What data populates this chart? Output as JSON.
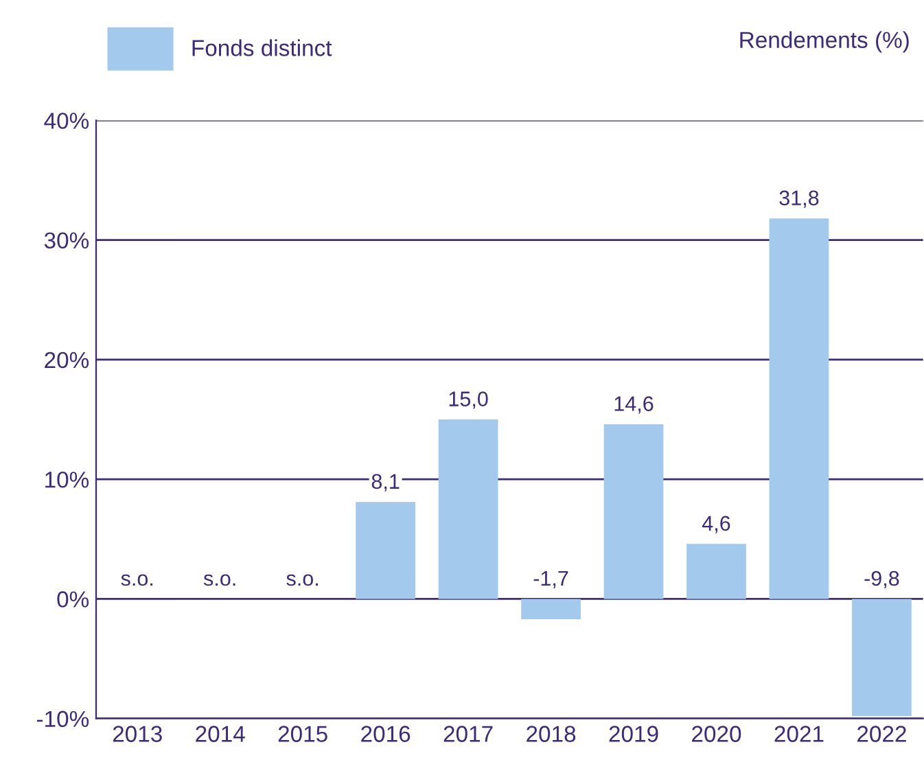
{
  "chart_data": {
    "type": "bar",
    "ylabel": "Rendements (%)",
    "categories": [
      "2013",
      "2014",
      "2015",
      "2016",
      "2017",
      "2018",
      "2019",
      "2020",
      "2021",
      "2022"
    ],
    "series": [
      {
        "name": "Fonds distinct",
        "color": "#a3c9ec",
        "values": [
          null,
          null,
          null,
          8.1,
          15.0,
          -1.7,
          14.6,
          4.6,
          31.8,
          -9.8
        ],
        "value_labels": [
          "s.o.",
          "s.o.",
          "s.o.",
          "8,1",
          "15,0",
          "-1,7",
          "14,6",
          "4,6",
          "31,8",
          "-9,8"
        ]
      }
    ],
    "ylim": [
      -10,
      40
    ],
    "yticks": [
      {
        "value": -10,
        "label": "-10%"
      },
      {
        "value": 0,
        "label": "0%"
      },
      {
        "value": 10,
        "label": "10%"
      },
      {
        "value": 20,
        "label": "20%"
      },
      {
        "value": 30,
        "label": "30%"
      },
      {
        "value": 40,
        "label": "40%"
      }
    ],
    "grid": "y",
    "legend": "top left"
  }
}
